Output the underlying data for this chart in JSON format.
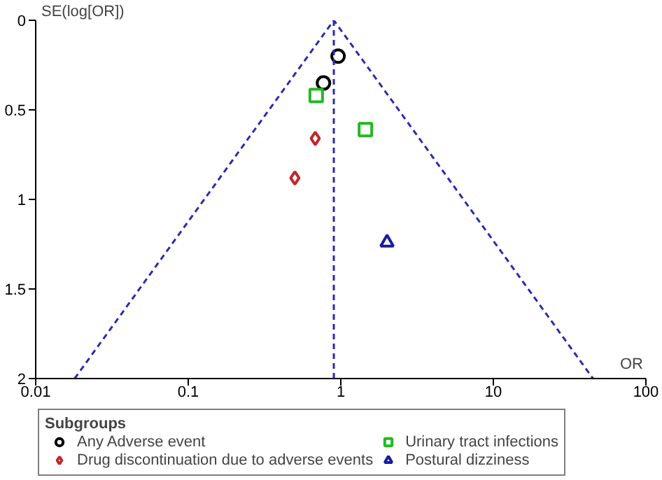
{
  "chart_data": {
    "type": "scatter",
    "xlabel": "OR",
    "ylabel": "SE(log[OR])",
    "legend_title": "Subgroups",
    "legend": "bottom",
    "grid": false,
    "log": "x",
    "xlim": [
      0.01,
      100
    ],
    "xticks": [
      0.01,
      0.1,
      1,
      10,
      100
    ],
    "ylim": [
      2,
      0
    ],
    "yticks": [
      0,
      0.5,
      1,
      1.5,
      2
    ],
    "series": [
      {
        "name": "Any Adverse event",
        "color": "#000000",
        "marker": "circle",
        "x": [
          0.96,
          0.77
        ],
        "values": [
          0.2,
          0.35
        ]
      },
      {
        "name": "Drug discontinuation due to adverse events",
        "color": "#c0282a",
        "marker": "diamond",
        "x": [
          0.68,
          0.5
        ],
        "values": [
          0.66,
          0.88
        ]
      },
      {
        "name": "Urinary tract infections",
        "color": "#22b822",
        "marker": "square",
        "x": [
          0.69,
          1.45
        ],
        "values": [
          0.42,
          0.61
        ]
      },
      {
        "name": "Postural dizziness",
        "color": "#1a1aa0",
        "marker": "triangle",
        "x": [
          2.01
        ],
        "values": [
          1.24
        ]
      },
      {
        "type": "line",
        "color": "#2b2bb0",
        "line_style": "dashed",
        "marker": "none",
        "x": [
          0.018,
          0.9,
          45
        ],
        "values": [
          2,
          0,
          2
        ]
      }
    ],
    "ref_lines": [
      {
        "axis": "x",
        "value": 0.9,
        "color": "#2b2bb0",
        "line_style": "dashed"
      }
    ]
  }
}
